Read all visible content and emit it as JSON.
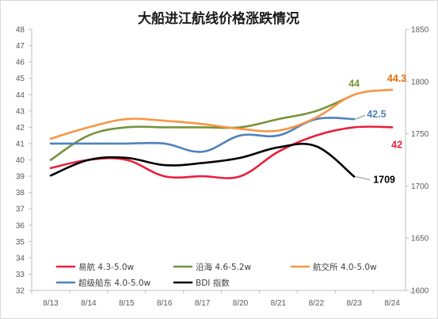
{
  "chart_data": {
    "type": "line",
    "title": "大船进江航线价格涨跌情况",
    "categories": [
      "8/13",
      "8/14",
      "8/15",
      "8/16",
      "8/17",
      "8/20",
      "8/21",
      "8/22",
      "8/23",
      "8/24"
    ],
    "y_left": {
      "min": 32,
      "max": 48,
      "step": 1
    },
    "y_right": {
      "min": 1600,
      "max": 1850,
      "step": 50
    },
    "grid": false,
    "legend_position": "bottom-left, inside plot",
    "series": [
      {
        "name": "易航 4.3-5.0w",
        "axis": "left",
        "color": "#e8203d",
        "values": [
          39.5,
          40.0,
          40.0,
          39.0,
          39.0,
          39.0,
          40.5,
          41.5,
          42.0,
          42.0
        ],
        "end_label": "42",
        "end_label_color": "#e8203d"
      },
      {
        "name": "沿海 4.6-5.2w",
        "axis": "left",
        "color": "#77933c",
        "values": [
          40.0,
          41.5,
          42.0,
          42.0,
          42.0,
          42.0,
          42.5,
          43.0,
          44.0,
          null
        ],
        "end_label": "44",
        "end_label_color": "#77933c"
      },
      {
        "name": "航交所 4.0-5.0w",
        "axis": "left",
        "color": "#f79646",
        "values": [
          41.3,
          42.0,
          42.5,
          42.4,
          42.2,
          41.9,
          41.8,
          42.6,
          44.0,
          44.3
        ],
        "end_label": "44.3",
        "end_label_color": "#e36c09"
      },
      {
        "name": "超级船东 4.0-5.0w",
        "axis": "left",
        "color": "#4f81bd",
        "values": [
          41.0,
          41.0,
          41.0,
          41.0,
          40.5,
          41.5,
          41.5,
          42.5,
          42.5,
          null
        ],
        "end_label": "42.5",
        "end_label_color": "#4f81bd"
      },
      {
        "name": "BDI 指数",
        "axis": "right",
        "color": "#000000",
        "values": [
          1710,
          1725,
          1727,
          1720,
          1722,
          1727,
          1737,
          1738,
          1709,
          null
        ],
        "end_label": "1709",
        "end_label_color": "#000000"
      }
    ]
  }
}
